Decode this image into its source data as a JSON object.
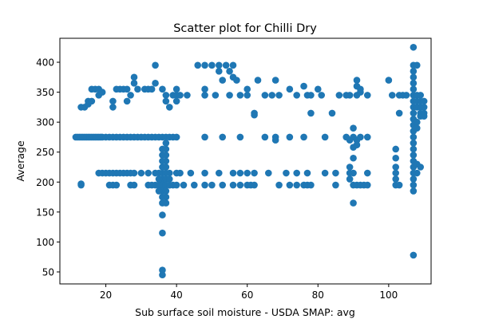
{
  "chart_data": {
    "type": "scatter",
    "title": "Scatter plot for Chilli Dry",
    "xlabel": "Sub surface soil moisture - USDA SMAP: avg",
    "ylabel": "Average",
    "xlim": [
      7,
      112
    ],
    "ylim": [
      30,
      440
    ],
    "xticks": [
      20,
      40,
      60,
      80,
      100
    ],
    "yticks": [
      50,
      100,
      150,
      200,
      250,
      300,
      350,
      400
    ],
    "marker_color": "#1f77b4",
    "grid": false,
    "points": [
      [
        11.5,
        275
      ],
      [
        12,
        275
      ],
      [
        12.5,
        275
      ],
      [
        13,
        275
      ],
      [
        13.5,
        275
      ],
      [
        14,
        275
      ],
      [
        14.5,
        275
      ],
      [
        15,
        275
      ],
      [
        15.5,
        275
      ],
      [
        16,
        275
      ],
      [
        16.5,
        275
      ],
      [
        17,
        275
      ],
      [
        17.5,
        275
      ],
      [
        18,
        275
      ],
      [
        18.5,
        275
      ],
      [
        19,
        275
      ],
      [
        20,
        275
      ],
      [
        21,
        275
      ],
      [
        22,
        275
      ],
      [
        23,
        275
      ],
      [
        24,
        275
      ],
      [
        25,
        275
      ],
      [
        26,
        275
      ],
      [
        27,
        275
      ],
      [
        28,
        275
      ],
      [
        29,
        275
      ],
      [
        30,
        275
      ],
      [
        31,
        275
      ],
      [
        32,
        275
      ],
      [
        33,
        275
      ],
      [
        34,
        275
      ],
      [
        35,
        275
      ],
      [
        36,
        275
      ],
      [
        37,
        275
      ],
      [
        38,
        275
      ],
      [
        39,
        275
      ],
      [
        40,
        275
      ],
      [
        48,
        275
      ],
      [
        53,
        275
      ],
      [
        58,
        275
      ],
      [
        65,
        275
      ],
      [
        68,
        275
      ],
      [
        68,
        270
      ],
      [
        72,
        275
      ],
      [
        76,
        275
      ],
      [
        82,
        275
      ],
      [
        88,
        275
      ],
      [
        89,
        270
      ],
      [
        90,
        275
      ],
      [
        91,
        270
      ],
      [
        92,
        275
      ],
      [
        94,
        275
      ],
      [
        13,
        195
      ],
      [
        13,
        197
      ],
      [
        21,
        195
      ],
      [
        22,
        195
      ],
      [
        23,
        195
      ],
      [
        27,
        195
      ],
      [
        28,
        195
      ],
      [
        32,
        195
      ],
      [
        33,
        195
      ],
      [
        34,
        195
      ],
      [
        35,
        195
      ],
      [
        38,
        195
      ],
      [
        39,
        195
      ],
      [
        40,
        195
      ],
      [
        42,
        195
      ],
      [
        45,
        195
      ],
      [
        48,
        195
      ],
      [
        50,
        195
      ],
      [
        53,
        195
      ],
      [
        56,
        195
      ],
      [
        58,
        195
      ],
      [
        60,
        195
      ],
      [
        61,
        195
      ],
      [
        62,
        195
      ],
      [
        69,
        195
      ],
      [
        72,
        195
      ],
      [
        74,
        195
      ],
      [
        76,
        195
      ],
      [
        77,
        195
      ],
      [
        78,
        195
      ],
      [
        85,
        195
      ],
      [
        90,
        195
      ],
      [
        91,
        195
      ],
      [
        92,
        195
      ],
      [
        93,
        195
      ],
      [
        94,
        195
      ],
      [
        102,
        195
      ],
      [
        103,
        195
      ],
      [
        18,
        215
      ],
      [
        19,
        215
      ],
      [
        20,
        215
      ],
      [
        21,
        215
      ],
      [
        22,
        215
      ],
      [
        23,
        215
      ],
      [
        24,
        215
      ],
      [
        25,
        215
      ],
      [
        26,
        215
      ],
      [
        27,
        215
      ],
      [
        28,
        215
      ],
      [
        30,
        215
      ],
      [
        32,
        215
      ],
      [
        34,
        215
      ],
      [
        36,
        215
      ],
      [
        38,
        215
      ],
      [
        40,
        215
      ],
      [
        41,
        215
      ],
      [
        44,
        215
      ],
      [
        48,
        215
      ],
      [
        52,
        215
      ],
      [
        56,
        215
      ],
      [
        58,
        215
      ],
      [
        60,
        215
      ],
      [
        62,
        215
      ],
      [
        66,
        215
      ],
      [
        71,
        215
      ],
      [
        74,
        215
      ],
      [
        77,
        215
      ],
      [
        82,
        215
      ],
      [
        85,
        215
      ],
      [
        89,
        215
      ],
      [
        90,
        215
      ],
      [
        94,
        215
      ],
      [
        102,
        215
      ],
      [
        102,
        225
      ],
      [
        102,
        240
      ],
      [
        102,
        255
      ],
      [
        102,
        205
      ],
      [
        89,
        205
      ],
      [
        89,
        225
      ],
      [
        90,
        240
      ],
      [
        90,
        258
      ],
      [
        90,
        290
      ],
      [
        90,
        165
      ],
      [
        91,
        262
      ],
      [
        13,
        325
      ],
      [
        14,
        325
      ],
      [
        15,
        330
      ],
      [
        15,
        335
      ],
      [
        16,
        335
      ],
      [
        16,
        355
      ],
      [
        17,
        355
      ],
      [
        18,
        355
      ],
      [
        18,
        345
      ],
      [
        19,
        350
      ],
      [
        22,
        325
      ],
      [
        22,
        335
      ],
      [
        23,
        355
      ],
      [
        24,
        355
      ],
      [
        25,
        355
      ],
      [
        26,
        355
      ],
      [
        26,
        335
      ],
      [
        27,
        345
      ],
      [
        28,
        365
      ],
      [
        28,
        375
      ],
      [
        29,
        355
      ],
      [
        31,
        355
      ],
      [
        32,
        355
      ],
      [
        33,
        355
      ],
      [
        34,
        365
      ],
      [
        34,
        395
      ],
      [
        36,
        355
      ],
      [
        37,
        345
      ],
      [
        37,
        335
      ],
      [
        38,
        325
      ],
      [
        39,
        345
      ],
      [
        40,
        345
      ],
      [
        40,
        355
      ],
      [
        40,
        335
      ],
      [
        41,
        345
      ],
      [
        43,
        345
      ],
      [
        46,
        395
      ],
      [
        48,
        345
      ],
      [
        48,
        355
      ],
      [
        48,
        395
      ],
      [
        50,
        395
      ],
      [
        51,
        345
      ],
      [
        52,
        385
      ],
      [
        52,
        395
      ],
      [
        53,
        370
      ],
      [
        54,
        395
      ],
      [
        55,
        385
      ],
      [
        55,
        345
      ],
      [
        56,
        395
      ],
      [
        56,
        375
      ],
      [
        57,
        370
      ],
      [
        58,
        345
      ],
      [
        60,
        355
      ],
      [
        60,
        345
      ],
      [
        62,
        315
      ],
      [
        62,
        312
      ],
      [
        63,
        370
      ],
      [
        65,
        345
      ],
      [
        67,
        345
      ],
      [
        68,
        370
      ],
      [
        69,
        345
      ],
      [
        72,
        355
      ],
      [
        74,
        345
      ],
      [
        76,
        360
      ],
      [
        77,
        345
      ],
      [
        78,
        315
      ],
      [
        78,
        345
      ],
      [
        80,
        355
      ],
      [
        81,
        345
      ],
      [
        84,
        315
      ],
      [
        86,
        345
      ],
      [
        88,
        345
      ],
      [
        89,
        345
      ],
      [
        91,
        345
      ],
      [
        91,
        370
      ],
      [
        91,
        360
      ],
      [
        92,
        355
      ],
      [
        92,
        350
      ],
      [
        94,
        345
      ],
      [
        100,
        370
      ],
      [
        101,
        345
      ],
      [
        103,
        345
      ],
      [
        104,
        345
      ],
      [
        105,
        345
      ],
      [
        103,
        315
      ],
      [
        36,
        255
      ],
      [
        36,
        245
      ],
      [
        36,
        235
      ],
      [
        36,
        225
      ],
      [
        36,
        215
      ],
      [
        36,
        205
      ],
      [
        36,
        200
      ],
      [
        36,
        195
      ],
      [
        36,
        190
      ],
      [
        36,
        185
      ],
      [
        36,
        175
      ],
      [
        36,
        165
      ],
      [
        36,
        145
      ],
      [
        36,
        115
      ],
      [
        36,
        53
      ],
      [
        36,
        45
      ],
      [
        37,
        265
      ],
      [
        37,
        255
      ],
      [
        37,
        245
      ],
      [
        37,
        235
      ],
      [
        37,
        225
      ],
      [
        37,
        215
      ],
      [
        37,
        205
      ],
      [
        37,
        195
      ],
      [
        37,
        185
      ],
      [
        37,
        175
      ],
      [
        37,
        165
      ],
      [
        35,
        215
      ],
      [
        35,
        205
      ],
      [
        35,
        195
      ],
      [
        35,
        185
      ],
      [
        38,
        205
      ],
      [
        38,
        195
      ],
      [
        107,
        425
      ],
      [
        107,
        395
      ],
      [
        107,
        385
      ],
      [
        107,
        375
      ],
      [
        107,
        365
      ],
      [
        107,
        355
      ],
      [
        107,
        345
      ],
      [
        107,
        335
      ],
      [
        107,
        325
      ],
      [
        107,
        315
      ],
      [
        107,
        305
      ],
      [
        107,
        295
      ],
      [
        107,
        285
      ],
      [
        107,
        275
      ],
      [
        107,
        265
      ],
      [
        107,
        255
      ],
      [
        107,
        245
      ],
      [
        107,
        235
      ],
      [
        107,
        225
      ],
      [
        107,
        215
      ],
      [
        107,
        205
      ],
      [
        107,
        195
      ],
      [
        107,
        185
      ],
      [
        107,
        78
      ],
      [
        108,
        395
      ],
      [
        108,
        345
      ],
      [
        108,
        335
      ],
      [
        108,
        325
      ],
      [
        108,
        300
      ],
      [
        108,
        290
      ],
      [
        108,
        230
      ],
      [
        108,
        215
      ],
      [
        109,
        345
      ],
      [
        109,
        335
      ],
      [
        109,
        325
      ],
      [
        109,
        315
      ],
      [
        109,
        310
      ],
      [
        109,
        225
      ],
      [
        110,
        335
      ],
      [
        110,
        325
      ],
      [
        110,
        315
      ],
      [
        110,
        310
      ]
    ]
  }
}
